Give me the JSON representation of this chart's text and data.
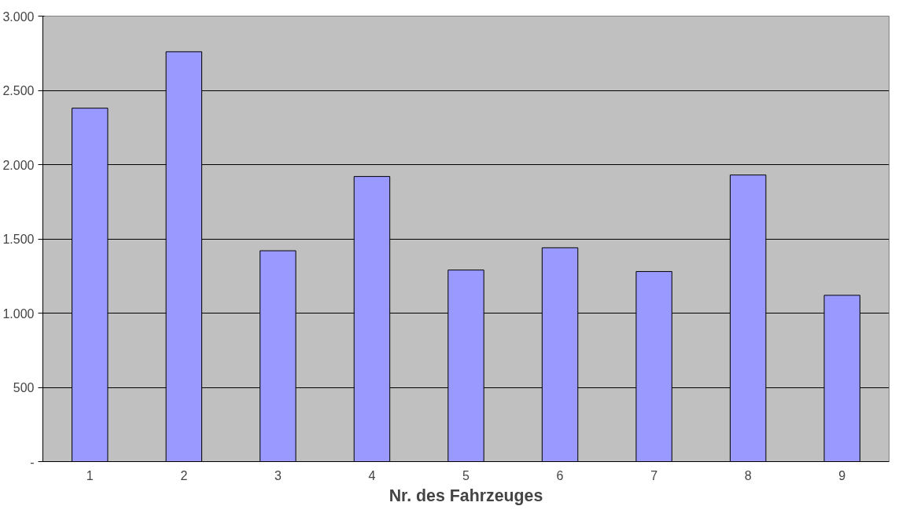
{
  "chart_data": {
    "type": "bar",
    "xlabel": "Nr. des Fahrzeuges",
    "categories": [
      "1",
      "2",
      "3",
      "4",
      "5",
      "6",
      "7",
      "8",
      "9"
    ],
    "values": [
      2380,
      2760,
      1420,
      1920,
      1290,
      1440,
      1280,
      1930,
      1120
    ],
    "color": "#9999ff",
    "ylim": [
      0,
      3000
    ],
    "yticks": [
      {
        "value": 0,
        "label": "-"
      },
      {
        "value": 500,
        "label": "500"
      },
      {
        "value": 1000,
        "label": "1.000"
      },
      {
        "value": 1500,
        "label": "1.500"
      },
      {
        "value": 2000,
        "label": "2.000"
      },
      {
        "value": 2500,
        "label": "2.500"
      },
      {
        "value": 3000,
        "label": "3.000"
      }
    ],
    "grid": "y"
  }
}
